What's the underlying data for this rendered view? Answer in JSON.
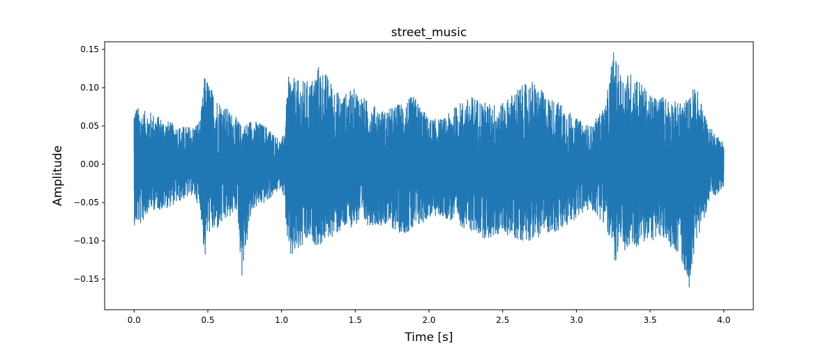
{
  "chart_data": {
    "type": "line",
    "title": "street_music",
    "xlabel": "Time [s]",
    "ylabel": "Amplitude",
    "xlim": [
      -0.2,
      4.2
    ],
    "ylim": [
      -0.19,
      0.16
    ],
    "grid": false,
    "series_color": "#1f77b4",
    "x_ticks": [
      0.0,
      0.5,
      1.0,
      1.5,
      2.0,
      2.5,
      3.0,
      3.5,
      4.0
    ],
    "x_tick_labels": [
      "0.0",
      "0.5",
      "1.0",
      "1.5",
      "2.0",
      "2.5",
      "3.0",
      "3.5",
      "4.0"
    ],
    "y_ticks": [
      -0.15,
      -0.1,
      -0.05,
      0.0,
      0.05,
      0.1,
      0.15
    ],
    "y_tick_labels": [
      "−0.15",
      "−0.10",
      "−0.05",
      "0.00",
      "0.05",
      "0.10",
      "0.15"
    ],
    "envelope": {
      "x": [
        0.0,
        0.05,
        0.1,
        0.2,
        0.3,
        0.4,
        0.45,
        0.48,
        0.5,
        0.55,
        0.6,
        0.65,
        0.7,
        0.73,
        0.8,
        0.9,
        1.0,
        1.02,
        1.05,
        1.1,
        1.2,
        1.25,
        1.3,
        1.4,
        1.5,
        1.6,
        1.7,
        1.8,
        1.9,
        2.0,
        2.1,
        2.2,
        2.3,
        2.4,
        2.5,
        2.6,
        2.7,
        2.8,
        2.9,
        3.0,
        3.1,
        3.2,
        3.25,
        3.3,
        3.4,
        3.5,
        3.6,
        3.7,
        3.78,
        3.8,
        3.9,
        4.0
      ],
      "upper": [
        0.08,
        0.07,
        0.07,
        0.06,
        0.05,
        0.05,
        0.06,
        0.12,
        0.11,
        0.09,
        0.08,
        0.07,
        0.06,
        0.05,
        0.06,
        0.05,
        0.03,
        0.05,
        0.12,
        0.11,
        0.11,
        0.13,
        0.12,
        0.09,
        0.1,
        0.08,
        0.07,
        0.08,
        0.09,
        0.06,
        0.06,
        0.08,
        0.09,
        0.08,
        0.08,
        0.1,
        0.11,
        0.09,
        0.08,
        0.06,
        0.05,
        0.08,
        0.15,
        0.12,
        0.12,
        0.09,
        0.09,
        0.08,
        0.09,
        0.11,
        0.05,
        0.03
      ],
      "lower": [
        -0.08,
        -0.08,
        -0.06,
        -0.06,
        -0.05,
        -0.04,
        -0.06,
        -0.13,
        -0.09,
        -0.09,
        -0.08,
        -0.07,
        -0.06,
        -0.15,
        -0.06,
        -0.05,
        -0.03,
        -0.05,
        -0.13,
        -0.12,
        -0.1,
        -0.11,
        -0.1,
        -0.09,
        -0.08,
        -0.08,
        -0.08,
        -0.09,
        -0.09,
        -0.07,
        -0.07,
        -0.08,
        -0.09,
        -0.1,
        -0.09,
        -0.1,
        -0.1,
        -0.09,
        -0.09,
        -0.07,
        -0.06,
        -0.08,
        -0.13,
        -0.12,
        -0.11,
        -0.1,
        -0.1,
        -0.12,
        -0.17,
        -0.11,
        -0.05,
        -0.03
      ]
    }
  }
}
